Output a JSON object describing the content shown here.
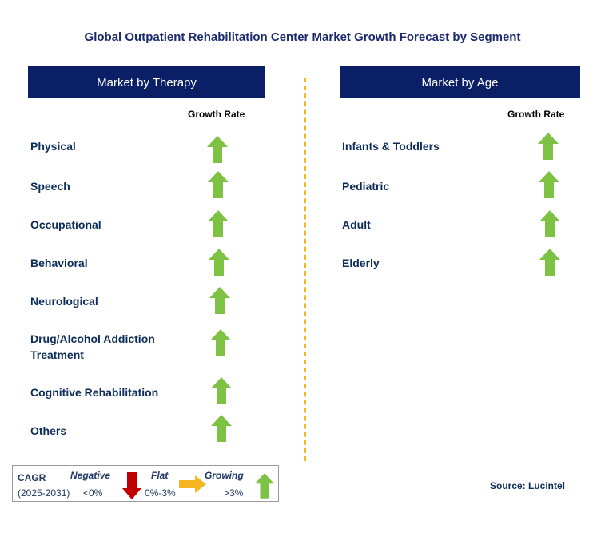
{
  "title": "Global Outpatient Rehabilitation Center Market Growth Forecast by Segment",
  "left_panel": {
    "header": "Market by Therapy",
    "column_header": "Growth Rate",
    "rows": [
      {
        "label": "Physical",
        "growth": "growing"
      },
      {
        "label": "Speech",
        "growth": "growing"
      },
      {
        "label": "Occupational",
        "growth": "growing"
      },
      {
        "label": "Behavioral",
        "growth": "growing"
      },
      {
        "label": "Neurological",
        "growth": "growing"
      },
      {
        "label_line1": "Drug/Alcohol Addiction",
        "label_line2": "Treatment",
        "growth": "growing"
      },
      {
        "label": "Cognitive Rehabilitation",
        "growth": "growing"
      },
      {
        "label": "Others",
        "growth": "growing"
      }
    ]
  },
  "right_panel": {
    "header": "Market by Age",
    "column_header": "Growth Rate",
    "rows": [
      {
        "label": "Infants & Toddlers",
        "growth": "growing"
      },
      {
        "label": "Pediatric",
        "growth": "growing"
      },
      {
        "label": "Adult",
        "growth": "growing"
      },
      {
        "label": "Elderly",
        "growth": "growing"
      }
    ]
  },
  "legend": {
    "cagr_label": "CAGR",
    "period": "(2025-2031)",
    "negative_label": "Negative",
    "negative_range": "<0%",
    "flat_label": "Flat",
    "flat_range": "0%-3%",
    "growing_label": "Growing",
    "growing_range": ">3%"
  },
  "colors": {
    "header_bg": "#0b1f66",
    "growing_arrow": "#7dc242",
    "negative_arrow": "#c00000",
    "flat_arrow": "#f5b622",
    "divider": "#f5b622"
  },
  "source": "Source: Lucintel"
}
